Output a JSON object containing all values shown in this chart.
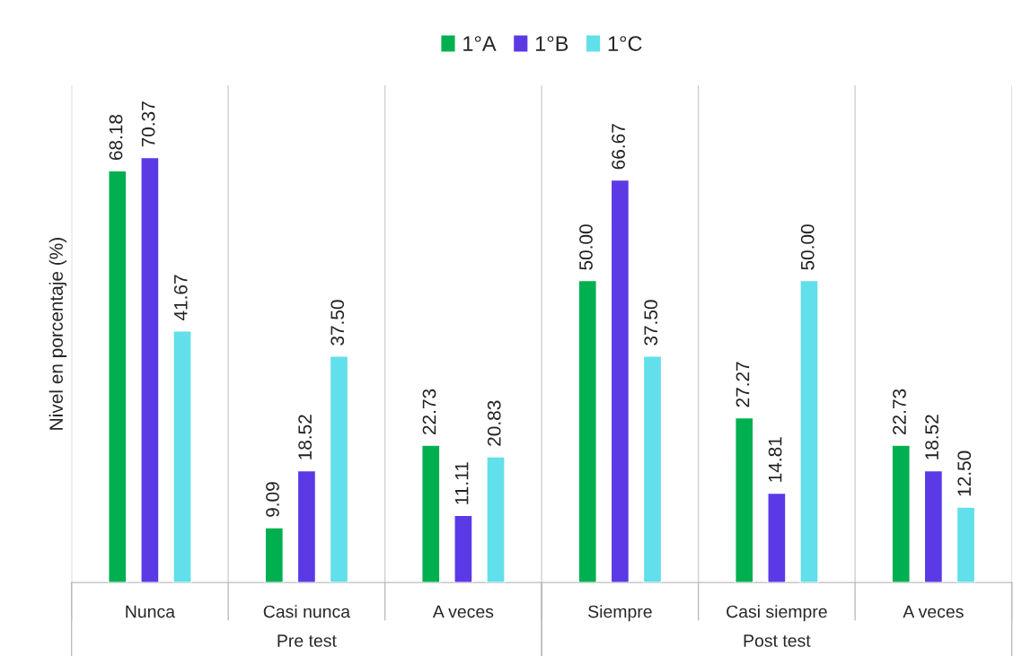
{
  "chart_data": {
    "type": "bar",
    "ylabel": "Nivel en porcentaje (%)",
    "categories": [
      "Nunca",
      "Casi nunca",
      "A veces",
      "Siempre",
      "Casi siempre",
      "A veces"
    ],
    "series": [
      {
        "name": "1°A",
        "color": "#00b050",
        "values": [
          68.18,
          9.09,
          22.73,
          50.0,
          27.27,
          22.73
        ],
        "value_labels": [
          "68.18",
          "9.09",
          "22.73",
          "50.00",
          "27.27",
          "22.73"
        ]
      },
      {
        "name": "1°B",
        "color": "#5b3ae6",
        "values": [
          70.37,
          18.52,
          11.11,
          66.67,
          14.81,
          18.52
        ],
        "value_labels": [
          "70.37",
          "18.52",
          "11.11",
          "66.67",
          "14.81",
          "18.52"
        ]
      },
      {
        "name": "1°C",
        "color": "#61dfea",
        "values": [
          41.67,
          37.5,
          20.83,
          37.5,
          50.0,
          12.5
        ],
        "value_labels": [
          "41.67",
          "37.50",
          "20.83",
          "37.50",
          "50.00",
          "12.50"
        ]
      }
    ],
    "annotations": [
      "Pre test",
      "Post test"
    ],
    "grid": "x",
    "legend": "top"
  }
}
